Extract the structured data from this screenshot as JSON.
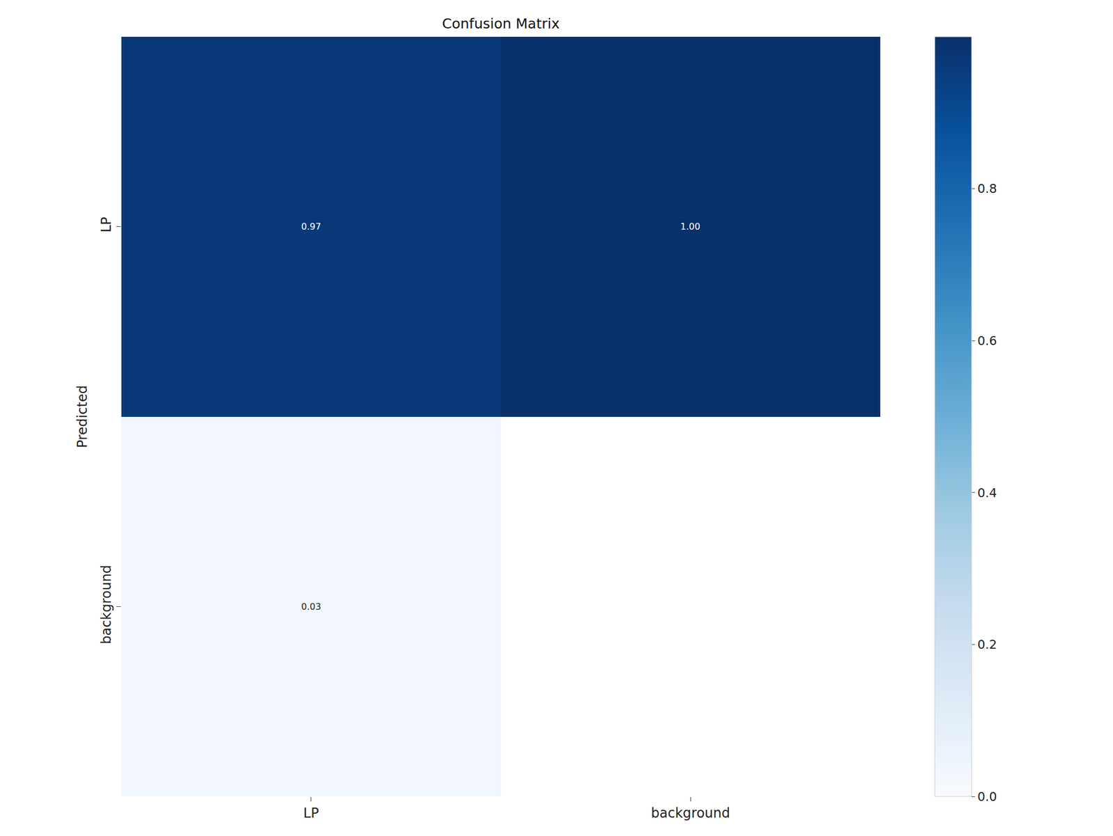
{
  "chart_data": {
    "type": "heatmap",
    "title": "Confusion Matrix",
    "ylabel": "Predicted",
    "categories": [
      "LP",
      "background"
    ],
    "y_categories": [
      "LP",
      "background"
    ],
    "cells": [
      [
        0.97,
        1.0
      ],
      [
        0.03,
        null
      ]
    ],
    "value_labels": [
      [
        "0.97",
        "1.00"
      ],
      [
        "0.03",
        null
      ]
    ],
    "data_labels": true,
    "colorbar": {
      "range": [
        0,
        1
      ],
      "ticks": [
        {
          "value": 0,
          "label": "0.0"
        },
        {
          "value": 0.2,
          "label": "0.2"
        },
        {
          "value": 0.4,
          "label": "0.4"
        },
        {
          "value": 0.6,
          "label": "0.6"
        },
        {
          "value": 0.8,
          "label": "0.8"
        }
      ]
    }
  }
}
